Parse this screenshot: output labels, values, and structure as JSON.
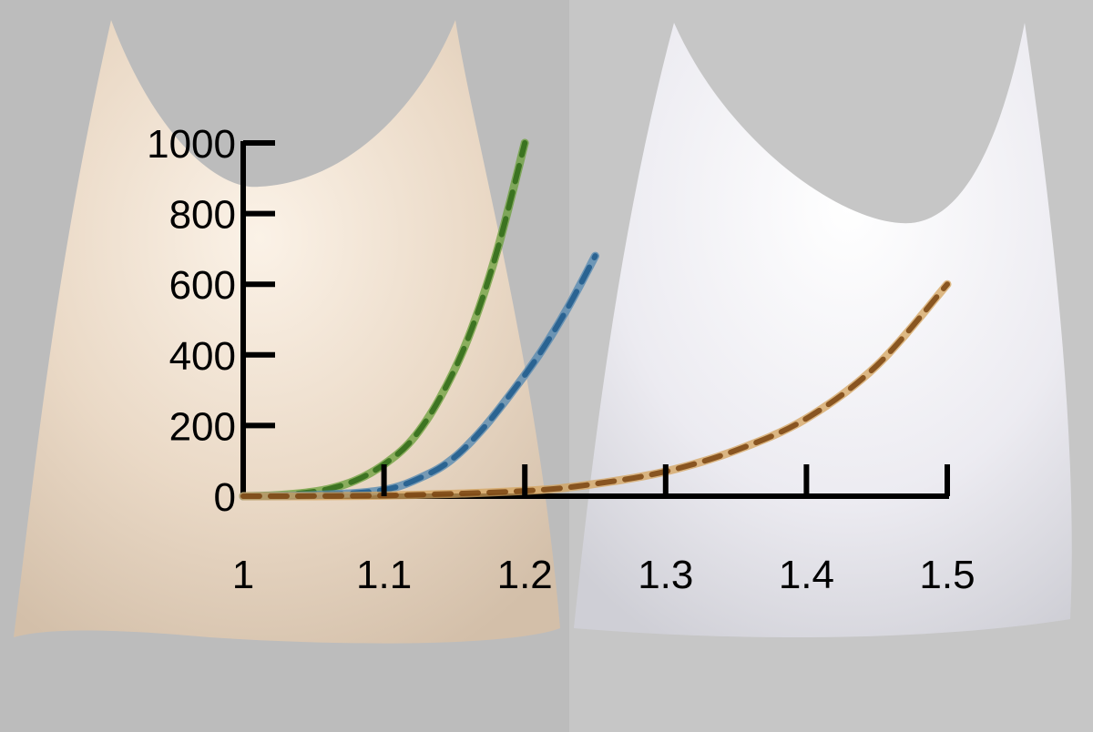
{
  "background": {
    "left_panel_color": "#bcbcbc",
    "right_panel_color": "#c6c6c6",
    "left_cloth_color": "#ead9c6",
    "right_cloth_color": "#f1f0f4"
  },
  "chart_data": {
    "type": "line",
    "title": "",
    "xlabel": "",
    "ylabel": "",
    "xlim": [
      1,
      1.5
    ],
    "ylim": [
      0,
      1000
    ],
    "xticks": [
      "1",
      "1.1",
      "1.2",
      "1.3",
      "1.4",
      "1.5"
    ],
    "yticks": [
      "0",
      "200",
      "400",
      "600",
      "800",
      "1000"
    ],
    "grid": false,
    "legend": "none",
    "series": [
      {
        "color": "#6a9f3a",
        "dash_color": "#2f6a17",
        "x": [
          1.0,
          1.02,
          1.04,
          1.06,
          1.08,
          1.1,
          1.12,
          1.14,
          1.16,
          1.18,
          1.2
        ],
        "y": [
          0,
          2,
          8,
          20,
          45,
          90,
          160,
          280,
          450,
          690,
          1000
        ]
      },
      {
        "color": "#4f86b0",
        "dash_color": "#1f5b8c",
        "x": [
          1.0,
          1.05,
          1.1,
          1.13,
          1.15,
          1.17,
          1.19,
          1.21,
          1.23,
          1.25
        ],
        "y": [
          0,
          3,
          18,
          60,
          110,
          190,
          290,
          400,
          530,
          680
        ]
      },
      {
        "color": "#d4a35c",
        "dash_color": "#7a4410",
        "x": [
          1.0,
          1.1,
          1.2,
          1.25,
          1.3,
          1.35,
          1.4,
          1.45,
          1.5
        ],
        "y": [
          0,
          2,
          15,
          35,
          70,
          130,
          220,
          370,
          600
        ]
      }
    ]
  }
}
